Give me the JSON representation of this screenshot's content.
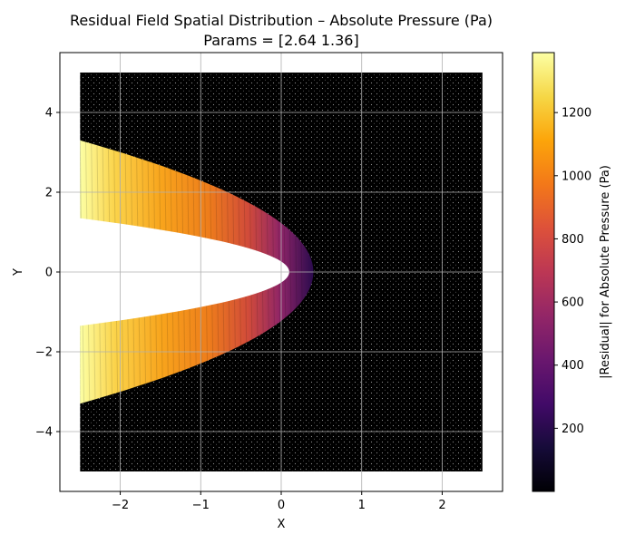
{
  "chart_data": {
    "type": "scatter",
    "title": "Residual Field Spatial Distribution – Absolute Pressure (Pa)",
    "subtitle": "Params = [2.64 1.36]",
    "xlabel": "X",
    "ylabel": "Y",
    "xlim": [
      -2.75,
      2.75
    ],
    "ylim": [
      -5.5,
      5.5
    ],
    "x_ticks": [
      -2,
      -1,
      0,
      1,
      2
    ],
    "x_tick_labels": [
      "−2",
      "−1",
      "0",
      "1",
      "2"
    ],
    "y_ticks": [
      -4,
      -2,
      0,
      2,
      4
    ],
    "y_tick_labels": [
      "−4",
      "−2",
      "0",
      "2",
      "4"
    ],
    "grid": true,
    "domain": {
      "x": [
        -2.5,
        2.5
      ],
      "y": [
        -5,
        5
      ]
    },
    "obstacle": {
      "shape": "parabola",
      "tip_x": 0.1,
      "opening": "left",
      "y_at_left_edge": 1.35
    },
    "high_residual_band": {
      "outer_y_at_left_edge": 3.3,
      "inner_y_at_left_edge": 1.35,
      "tip_x": 0.4,
      "peak_value": 1300
    },
    "background_residual_range": [
      0,
      200
    ],
    "colorbar": {
      "label": "|Residual| for Absolute Pressure (Pa)",
      "colormap": "inferno",
      "range": [
        0,
        1390
      ],
      "ticks": [
        200,
        400,
        600,
        800,
        1000,
        1200
      ],
      "tick_labels": [
        "200",
        "400",
        "600",
        "800",
        "1000",
        "1200"
      ]
    }
  }
}
